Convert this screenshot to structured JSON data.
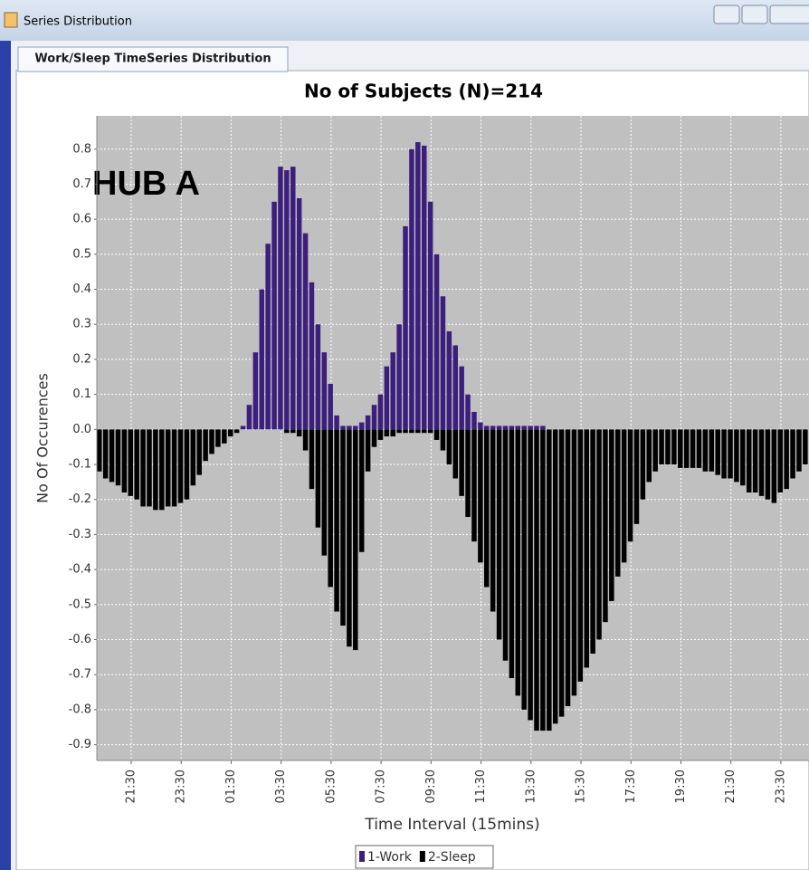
{
  "window": {
    "title": "Series Distribution",
    "tab": "Work/Sleep TimeSeries Distribution"
  },
  "chart_data": {
    "type": "bar",
    "title": "No of Subjects (N)=214",
    "annotation": "HUB A",
    "x_label": "Time Interval (15mins)",
    "y_label": "No Of Occurences",
    "grid": true,
    "ylim": [
      -0.945,
      0.895
    ],
    "yticks": [
      -0.9,
      -0.8,
      -0.7,
      -0.6,
      -0.5,
      -0.4,
      -0.3,
      -0.2,
      -0.1,
      {
        "value": 0,
        "label": "0.0"
      },
      0.1,
      0.2,
      0.3,
      0.4,
      0.5,
      0.6,
      0.7,
      0.8
    ],
    "categories": [
      null,
      null,
      null,
      null,
      null,
      "21:30",
      null,
      null,
      null,
      null,
      null,
      null,
      null,
      "23:30",
      null,
      null,
      null,
      null,
      null,
      null,
      null,
      "01:30",
      null,
      null,
      null,
      null,
      null,
      null,
      null,
      "03:30",
      null,
      null,
      null,
      null,
      null,
      null,
      null,
      "05:30",
      null,
      null,
      null,
      null,
      null,
      null,
      null,
      "07:30",
      null,
      null,
      null,
      null,
      null,
      null,
      null,
      "09:30",
      null,
      null,
      null,
      null,
      null,
      null,
      null,
      "11:30",
      null,
      null,
      null,
      null,
      null,
      null,
      null,
      "13:30",
      null,
      null,
      null,
      null,
      null,
      null,
      null,
      "15:30",
      null,
      null,
      null,
      null,
      null,
      null,
      null,
      "17:30",
      null,
      null,
      null,
      null,
      null,
      null,
      null,
      "19:30",
      null,
      null,
      null,
      null,
      null,
      null,
      null,
      "21:30",
      null,
      null,
      null,
      null,
      null,
      null,
      null,
      "23:30",
      null,
      null,
      null,
      null
    ],
    "series": [
      {
        "name": "1-Work",
        "color": "#3c1f7c",
        "values": [
          0,
          0,
          0,
          0,
          0,
          0,
          0,
          0,
          0,
          0,
          0,
          0,
          0,
          0,
          0,
          0,
          0,
          0,
          0,
          0,
          0,
          0,
          0,
          0.01,
          0.07,
          0.22,
          0.4,
          0.53,
          0.65,
          0.75,
          0.74,
          0.75,
          0.66,
          0.56,
          0.42,
          0.3,
          0.22,
          0.13,
          0.04,
          0.01,
          0.01,
          0.01,
          0.02,
          0.04,
          0.07,
          0.1,
          0.18,
          0.22,
          0.3,
          0.58,
          0.8,
          0.82,
          0.81,
          0.65,
          0.5,
          0.38,
          0.28,
          0.24,
          0.18,
          0.1,
          0.05,
          0.02,
          0.01,
          0.01,
          0.01,
          0.01,
          0.01,
          0.01,
          0.01,
          0.01,
          0.01,
          0.01,
          0,
          0,
          0,
          0,
          0,
          0,
          0,
          0,
          0,
          0,
          0,
          0,
          0,
          0,
          0,
          0,
          0,
          0,
          0,
          0,
          0,
          0,
          0,
          0,
          0,
          0,
          0,
          0,
          0,
          0,
          0,
          0,
          0,
          0,
          0,
          0,
          0,
          0,
          0,
          0,
          0,
          0
        ]
      },
      {
        "name": "2-Sleep",
        "color": "#000000",
        "values": [
          -0.12,
          -0.14,
          -0.15,
          -0.16,
          -0.18,
          -0.19,
          -0.2,
          -0.22,
          -0.22,
          -0.23,
          -0.23,
          -0.22,
          -0.22,
          -0.21,
          -0.2,
          -0.16,
          -0.13,
          -0.09,
          -0.07,
          -0.05,
          -0.04,
          -0.02,
          -0.01,
          0,
          0,
          0,
          0,
          0,
          0,
          0,
          -0.01,
          -0.01,
          -0.02,
          -0.06,
          -0.17,
          -0.28,
          -0.36,
          -0.45,
          -0.52,
          -0.56,
          -0.62,
          -0.63,
          -0.35,
          -0.12,
          -0.05,
          -0.03,
          -0.02,
          -0.02,
          -0.01,
          -0.01,
          -0.01,
          -0.01,
          -0.01,
          -0.01,
          -0.03,
          -0.06,
          -0.1,
          -0.14,
          -0.19,
          -0.25,
          -0.32,
          -0.38,
          -0.45,
          -0.52,
          -0.6,
          -0.66,
          -0.71,
          -0.76,
          -0.8,
          -0.83,
          -0.86,
          -0.86,
          -0.86,
          -0.84,
          -0.82,
          -0.79,
          -0.76,
          -0.72,
          -0.68,
          -0.64,
          -0.6,
          -0.55,
          -0.49,
          -0.42,
          -0.38,
          -0.32,
          -0.27,
          -0.2,
          -0.15,
          -0.12,
          -0.1,
          -0.1,
          -0.1,
          -0.11,
          -0.11,
          -0.11,
          -0.11,
          -0.12,
          -0.12,
          -0.13,
          -0.14,
          -0.14,
          -0.15,
          -0.16,
          -0.18,
          -0.18,
          -0.19,
          -0.2,
          -0.21,
          -0.18,
          -0.17,
          -0.14,
          -0.12,
          -0.1
        ]
      }
    ]
  }
}
